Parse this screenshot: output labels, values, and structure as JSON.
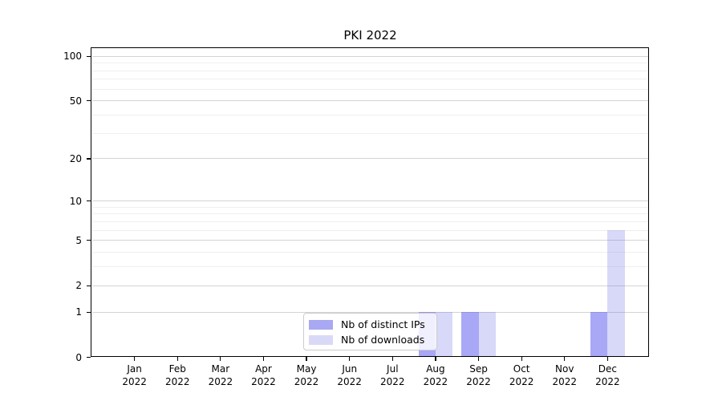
{
  "title": "PKI 2022",
  "colors": {
    "ips_bar": "rgba(81,81,238,0.5)",
    "downloads_bar": "rgba(105,105,232,0.26)",
    "ips_swatch": "#a8a8f3",
    "downloads_swatch": "#d9d9f7",
    "grid_major": "#d4d4d4",
    "grid_minor": "#efefef",
    "spine": "#000000"
  },
  "legend": {
    "items": [
      {
        "label": "Nb of distinct IPs",
        "color_key": "ips_swatch"
      },
      {
        "label": "Nb of downloads",
        "color_key": "downloads_swatch"
      }
    ],
    "position": "bottom-center-left"
  },
  "chart_data": {
    "type": "bar",
    "title": "PKI 2022",
    "categories": [
      "Jan 2022",
      "Feb 2022",
      "Mar 2022",
      "Apr 2022",
      "May 2022",
      "Jun 2022",
      "Jul 2022",
      "Aug 2022",
      "Sep 2022",
      "Oct 2022",
      "Nov 2022",
      "Dec 2022"
    ],
    "x_labels": [
      {
        "month": "Jan",
        "year": "2022"
      },
      {
        "month": "Feb",
        "year": "2022"
      },
      {
        "month": "Mar",
        "year": "2022"
      },
      {
        "month": "Apr",
        "year": "2022"
      },
      {
        "month": "May",
        "year": "2022"
      },
      {
        "month": "Jun",
        "year": "2022"
      },
      {
        "month": "Jul",
        "year": "2022"
      },
      {
        "month": "Aug",
        "year": "2022"
      },
      {
        "month": "Sep",
        "year": "2022"
      },
      {
        "month": "Oct",
        "year": "2022"
      },
      {
        "month": "Nov",
        "year": "2022"
      },
      {
        "month": "Dec",
        "year": "2022"
      }
    ],
    "series": [
      {
        "name": "Nb of distinct IPs",
        "values": [
          0,
          0,
          0,
          0,
          0,
          0,
          0,
          1,
          1,
          0,
          0,
          1
        ]
      },
      {
        "name": "Nb of downloads",
        "values": [
          0,
          0,
          0,
          0,
          0,
          0,
          0,
          1,
          1,
          0,
          0,
          6
        ]
      }
    ],
    "y_scale": "log10(1+v)",
    "y_ticks": [
      100,
      50,
      20,
      10,
      5,
      2,
      1,
      0
    ],
    "y_minor_ticks": [
      3,
      4,
      6,
      7,
      8,
      9,
      30,
      40,
      60,
      70,
      80,
      90
    ],
    "ylim": [
      0,
      115
    ],
    "xlabel": "",
    "ylabel": "",
    "grid": "horizontal"
  }
}
